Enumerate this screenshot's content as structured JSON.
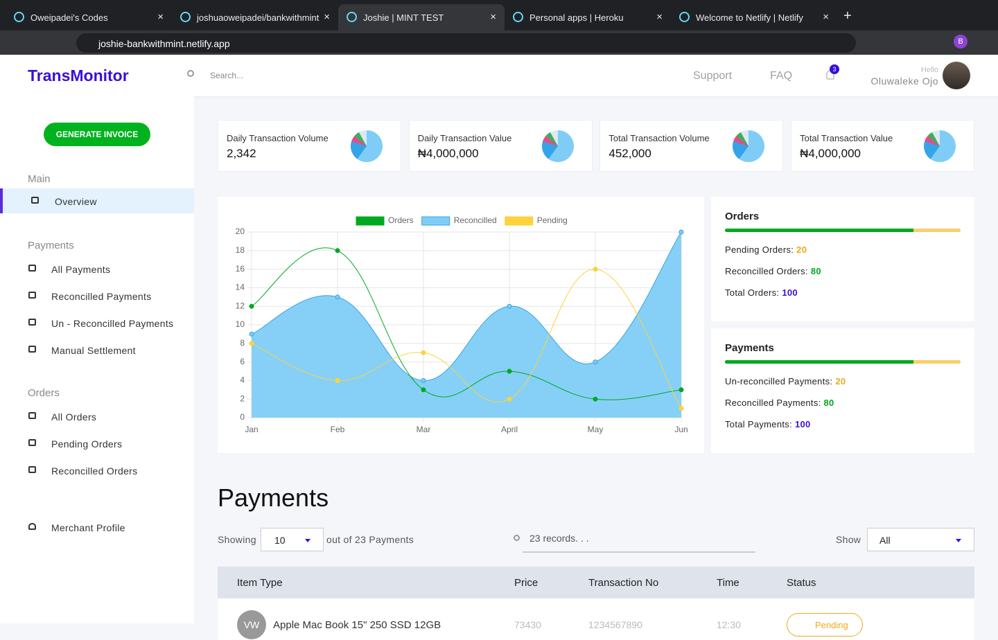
{
  "browser": {
    "tabs": [
      "Oweipadei's Codes",
      "joshuaoweipadei/bankwithmint",
      "Joshie | MINT TEST",
      "Personal apps | Heroku",
      "Welcome to Netlify | Netlify"
    ],
    "url": "joshie-bankwithmint.netlify.app",
    "profile": "B"
  },
  "header": {
    "brand": "TransMonitor",
    "search": "Search...",
    "nav": [
      "Support",
      "FAQ"
    ],
    "notifications": 3,
    "greeting": "Hello",
    "user": "Oluwaleke Ojo"
  },
  "sidebar": {
    "button": "GENERATE INVOICE",
    "sections": [
      {
        "title": "Main",
        "items": [
          "Overview"
        ]
      },
      {
        "title": "Payments",
        "items": [
          "All Payments",
          "Reconcilled Payments",
          "Un - Reconcilled Payments",
          "Manual Settlement"
        ]
      },
      {
        "title": "Orders",
        "items": [
          "All Orders",
          "Pending Orders",
          "Reconcilled Orders"
        ]
      }
    ],
    "profile": "Merchant Profile"
  },
  "stats": [
    {
      "label": "Daily Transaction Volume",
      "value": "2,342"
    },
    {
      "label": "Daily Transaction Value",
      "value": "₦4,000,000"
    },
    {
      "label": "Total Transaction Volume",
      "value": "452,000"
    },
    {
      "label": "Total Transaction Value",
      "value": "₦4,000,000"
    }
  ],
  "chart_data": {
    "type": "line",
    "categories": [
      "Jan",
      "Feb",
      "Mar",
      "April",
      "May",
      "Jun"
    ],
    "series": [
      {
        "name": "Orders",
        "color": "#00a91e",
        "values": [
          12,
          18,
          3,
          5,
          2,
          3
        ]
      },
      {
        "name": "Reconcilled",
        "color": "#35a3e8",
        "fill": "#7fcdf7",
        "values": [
          9,
          13,
          4,
          12,
          6,
          20
        ]
      },
      {
        "name": "Pending",
        "color": "#fdd23a",
        "values": [
          8,
          4,
          7,
          2,
          16,
          1
        ]
      }
    ],
    "ylim": [
      0,
      20
    ],
    "yticks": [
      0,
      2,
      4,
      6,
      8,
      10,
      12,
      14,
      16,
      18,
      20
    ],
    "grid": true,
    "legend": "top"
  },
  "summaries": [
    {
      "title": "Orders",
      "rows": [
        {
          "label": "Pending Orders:",
          "value": 20
        },
        {
          "label": "Reconcilled Orders:",
          "value": 80
        },
        {
          "label": "Total Orders:",
          "value": 100
        }
      ]
    },
    {
      "title": "Payments",
      "rows": [
        {
          "label": "Un-reconcilled Payments:",
          "value": 20
        },
        {
          "label": "Reconcilled Payments:",
          "value": 80
        },
        {
          "label": "Total Payments:",
          "value": 100
        }
      ]
    }
  ],
  "payments": {
    "title": "Payments",
    "showing": "Showing",
    "page_size": "10",
    "out_of": "out of 23 Payments",
    "search": "23 records. . .",
    "show": "Show",
    "filter": "All",
    "columns": [
      "Item Type",
      "Price",
      "Transaction No",
      "Time",
      "Status"
    ],
    "rows": [
      {
        "avatar": "VW",
        "item": "Apple Mac Book 15\" 250 SSD 12GB",
        "price": "73430",
        "transaction": "1234567890",
        "time": "12:30",
        "status": "Pending"
      }
    ]
  }
}
